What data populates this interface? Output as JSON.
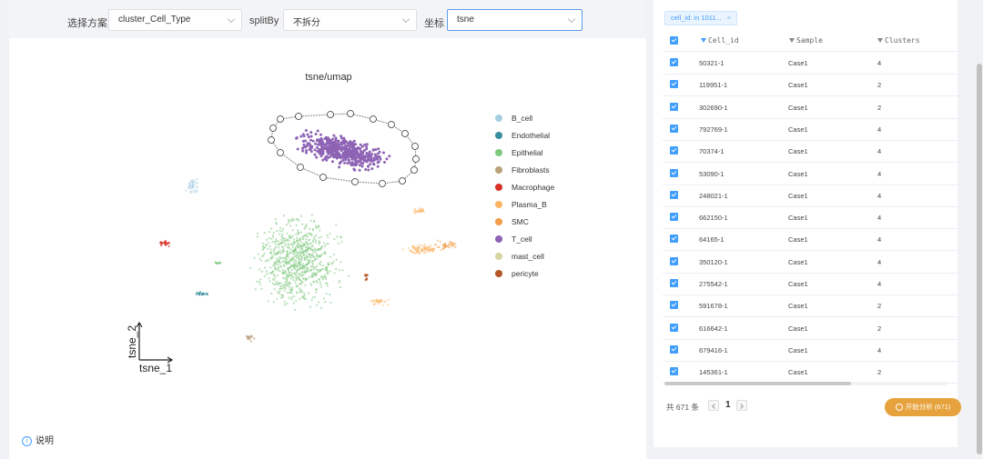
{
  "toolbar": {
    "scheme_label": "选择方案",
    "scheme_value": "cluster_Cell_Type",
    "splitby_label": "splitBy",
    "splitby_value": "不拆分",
    "coord_label": "坐标",
    "coord_value": "tsne"
  },
  "plot": {
    "title": "tsne/umap",
    "axis_x": "tsne_1",
    "axis_y": "tsne_2",
    "legend": [
      {
        "name": "B_cell",
        "color": "#a6cee3"
      },
      {
        "name": "Endothelial",
        "color": "#3b8e9f"
      },
      {
        "name": "Epithelial",
        "color": "#7fc97f"
      },
      {
        "name": "Fibroblasts",
        "color": "#b8a07a"
      },
      {
        "name": "Macrophage",
        "color": "#d73027"
      },
      {
        "name": "Plasma_B",
        "color": "#fdb462"
      },
      {
        "name": "SMC",
        "color": "#f39c4a"
      },
      {
        "name": "T_cell",
        "color": "#8e63b5"
      },
      {
        "name": "mast_cell",
        "color": "#d9d4a3"
      },
      {
        "name": "pericyte",
        "color": "#b5562a"
      }
    ]
  },
  "help_label": "说明",
  "filter_tag": "cell_id: in 1011...",
  "table": {
    "columns": [
      "Cell_id",
      "Sample",
      "Clusters"
    ],
    "rows": [
      {
        "id": "50321-1",
        "sample": "Case1",
        "cluster": "4"
      },
      {
        "id": "119951-1",
        "sample": "Case1",
        "cluster": "2"
      },
      {
        "id": "302690-1",
        "sample": "Case1",
        "cluster": "2"
      },
      {
        "id": "792769-1",
        "sample": "Case1",
        "cluster": "4"
      },
      {
        "id": "70374-1",
        "sample": "Case1",
        "cluster": "4"
      },
      {
        "id": "53090-1",
        "sample": "Case1",
        "cluster": "4"
      },
      {
        "id": "248021-1",
        "sample": "Case1",
        "cluster": "4"
      },
      {
        "id": "662150-1",
        "sample": "Case1",
        "cluster": "4"
      },
      {
        "id": "64165-1",
        "sample": "Case1",
        "cluster": "4"
      },
      {
        "id": "350120-1",
        "sample": "Case1",
        "cluster": "4"
      },
      {
        "id": "275542-1",
        "sample": "Case1",
        "cluster": "4"
      },
      {
        "id": "591678-1",
        "sample": "Case1",
        "cluster": "2"
      },
      {
        "id": "616642-1",
        "sample": "Case1",
        "cluster": "2"
      },
      {
        "id": "679416-1",
        "sample": "Case1",
        "cluster": "4"
      },
      {
        "id": "145361-1",
        "sample": "Case1",
        "cluster": "2"
      }
    ]
  },
  "footer": {
    "total": "共 671 条",
    "page": "1",
    "analyze_label": "开始分析 (671)"
  }
}
